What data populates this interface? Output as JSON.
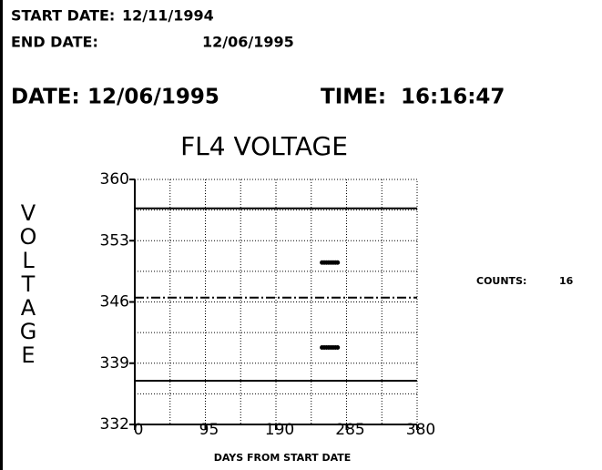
{
  "header": {
    "start_label": "START DATE:",
    "start_date": "12/11/1994",
    "end_label": "END DATE:",
    "end_date": "12/06/1995",
    "date_label": "DATE:",
    "date": "12/06/1995",
    "time_label": "TIME:",
    "time": "16:16:47"
  },
  "counts": {
    "label": "COUNTS:",
    "value": "16"
  },
  "chart_data": {
    "type": "scatter",
    "title": "FL4 VOLTAGE",
    "y_label": "VOLTAGE",
    "x_label": "DAYS FROM START DATE",
    "xlim": [
      0,
      380
    ],
    "xticks": [
      0,
      95,
      190,
      285,
      380
    ],
    "ylim": [
      332,
      360
    ],
    "yticks": [
      360,
      353,
      346,
      339,
      332
    ],
    "xgrid": [
      47.5,
      95,
      142.5,
      190,
      237.5,
      285,
      332.5
    ],
    "ygrid": [
      356.5,
      353,
      349.5,
      346,
      342.5,
      339,
      335.5
    ],
    "reference_lines": [
      {
        "value": 356.7,
        "style": "solid"
      },
      {
        "value": 346.5,
        "style": "dashdot"
      },
      {
        "value": 337,
        "style": "solid"
      }
    ],
    "color": "#000000",
    "x": [
      252,
      255,
      258,
      261,
      264,
      267,
      270,
      273,
      252,
      255,
      258,
      261,
      264,
      267,
      270,
      273
    ],
    "y": [
      350.5,
      350.5,
      350.5,
      350.5,
      350.5,
      350.5,
      350.5,
      350.5,
      340.8,
      340.8,
      340.8,
      340.8,
      340.8,
      340.8,
      340.8,
      340.8
    ]
  }
}
